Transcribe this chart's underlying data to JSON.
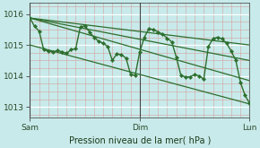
{
  "bg_color": "#c8eaea",
  "plot_bg": "#c8eaea",
  "grid_major_color": "#ffffff",
  "grid_minor_color": "#e8b8b8",
  "line_color": "#2d6e2d",
  "xlabel": "Pression niveau de la mer( hPa )",
  "yticks": [
    1013,
    1014,
    1015,
    1016
  ],
  "ylim": [
    1012.65,
    1016.35
  ],
  "xlim": [
    0,
    96
  ],
  "day_labels": [
    "Sam",
    "Dim",
    "Lun"
  ],
  "day_positions": [
    0,
    48,
    96
  ],
  "trend_lines": [
    [
      [
        0,
        1015.87
      ],
      [
        96,
        1015.0
      ]
    ],
    [
      [
        0,
        1015.87
      ],
      [
        96,
        1014.5
      ]
    ],
    [
      [
        0,
        1015.87
      ],
      [
        96,
        1013.85
      ]
    ],
    [
      [
        0,
        1015.0
      ],
      [
        96,
        1013.1
      ]
    ]
  ],
  "main_x": [
    0,
    2,
    4,
    6,
    8,
    10,
    12,
    14,
    16,
    18,
    20,
    22,
    24,
    26,
    28,
    30,
    32,
    34,
    36,
    38,
    40,
    42,
    44,
    46,
    48,
    50,
    52,
    54,
    56,
    58,
    60,
    62,
    64,
    66,
    68,
    70,
    72,
    74,
    76,
    78,
    80,
    82,
    84,
    86,
    88,
    90,
    92,
    94,
    96
  ],
  "main_y": [
    1015.87,
    1015.6,
    1015.45,
    1014.85,
    1014.8,
    1014.78,
    1014.82,
    1014.78,
    1014.73,
    1014.85,
    1014.88,
    1015.58,
    1015.62,
    1015.42,
    1015.25,
    1015.12,
    1015.06,
    1014.95,
    1014.5,
    1014.72,
    1014.68,
    1014.58,
    1014.05,
    1014.02,
    1014.78,
    1015.25,
    1015.52,
    1015.5,
    1015.42,
    1015.35,
    1015.22,
    1015.1,
    1014.6,
    1014.02,
    1013.97,
    1013.97,
    1014.05,
    1014.0,
    1013.9,
    1014.95,
    1015.2,
    1015.25,
    1015.2,
    1015.05,
    1014.8,
    1014.5,
    1013.8,
    1013.38,
    1013.12
  ]
}
